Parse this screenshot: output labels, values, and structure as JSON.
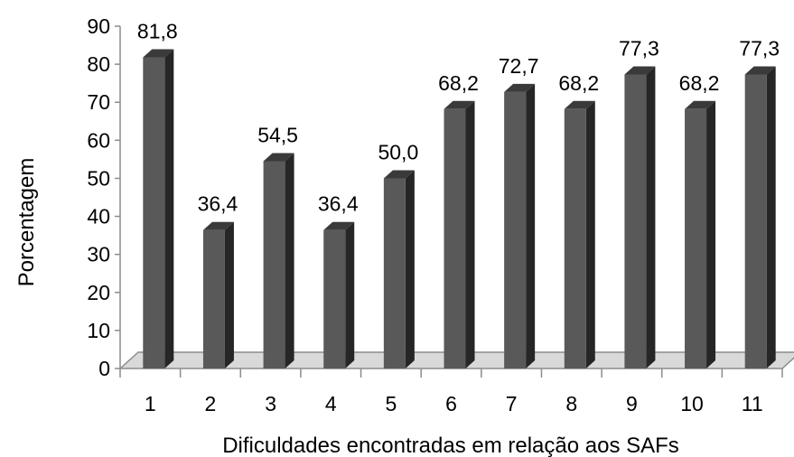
{
  "chart_data": {
    "type": "bar",
    "style": "3d-column",
    "categories": [
      "1",
      "2",
      "3",
      "4",
      "5",
      "6",
      "7",
      "8",
      "9",
      "10",
      "11"
    ],
    "values": [
      81.8,
      36.4,
      54.5,
      36.4,
      50.0,
      68.2,
      72.7,
      68.2,
      77.3,
      68.2,
      77.3
    ],
    "data_labels": [
      "81,8",
      "36,4",
      "54,5",
      "36,4",
      "50,0",
      "68,2",
      "72,7",
      "68,2",
      "77,3",
      "68,2",
      "77,3"
    ],
    "xlabel": "Dificuldades encontradas em relação aos SAFs",
    "ylabel": "Porcentagem",
    "ylim": [
      0,
      90
    ],
    "yticks": [
      "0",
      "10",
      "20",
      "30",
      "40",
      "50",
      "60",
      "70",
      "80",
      "90"
    ],
    "grid": false,
    "legend": "none",
    "colors": {
      "bar_front": "#595959",
      "bar_side": "#262626",
      "bar_top": "#3a3a3a",
      "floor": "#d9d9d9",
      "axis": "#8c8c8c"
    }
  }
}
